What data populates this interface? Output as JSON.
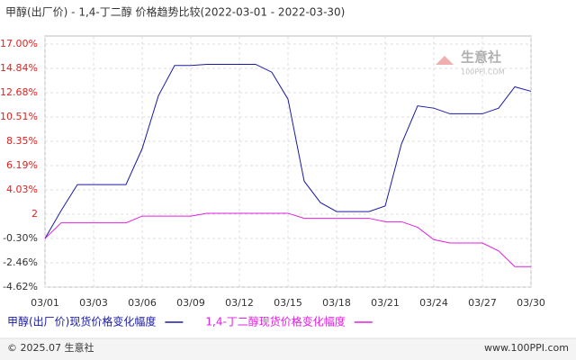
{
  "chart_data": {
    "type": "line",
    "title": "甲醇(出厂价) - 1,4-丁二醇 价格趋势比较(2022-03-01 - 2022-03-30)",
    "watermark": "生意社",
    "watermark_sub": "100PPI.COM",
    "categories": [
      "03/01",
      null,
      null,
      "03/03",
      null,
      null,
      "03/06",
      null,
      null,
      "03/09",
      null,
      null,
      "03/12",
      null,
      null,
      "03/15",
      null,
      null,
      "03/18",
      null,
      null,
      "03/21",
      null,
      null,
      "03/24",
      null,
      null,
      "03/27",
      null,
      null,
      "03/30"
    ],
    "series": [
      {
        "name": "甲醇(出厂价)现货价格变化幅度",
        "color": "#1a1aa6",
        "values": [
          -0.3,
          2.2,
          4.5,
          4.5,
          4.5,
          4.5,
          7.7,
          12.4,
          15.1,
          15.1,
          15.2,
          15.2,
          15.2,
          15.2,
          14.5,
          12.1,
          4.8,
          2.9,
          2.1,
          2.1,
          2.1,
          2.6,
          8.1,
          11.5,
          11.3,
          10.8,
          10.8,
          10.8,
          11.3,
          13.2,
          12.8
        ]
      },
      {
        "name": "1,4-丁二醇现货价格变化幅度",
        "color": "#e020e0",
        "values": [
          -0.3,
          1.1,
          1.1,
          1.1,
          1.1,
          1.1,
          1.7,
          1.7,
          1.7,
          1.7,
          1.95,
          1.95,
          1.95,
          1.95,
          1.95,
          1.95,
          1.5,
          1.5,
          1.5,
          1.5,
          1.5,
          1.2,
          1.2,
          0.7,
          -0.4,
          -0.7,
          -0.7,
          -0.7,
          -1.4,
          -2.8,
          -2.8
        ]
      }
    ],
    "ylim": [
      -4.62,
      17
    ],
    "yticks": [
      {
        "value": 17,
        "label": "17.00%"
      },
      {
        "value": 14.84,
        "label": "14.84%"
      },
      {
        "value": 12.68,
        "label": "12.68%"
      },
      {
        "value": 10.51,
        "label": "10.51%"
      },
      {
        "value": 8.35,
        "label": "8.35%"
      },
      {
        "value": 6.19,
        "label": "6.19%"
      },
      {
        "value": 4.03,
        "label": "4.03%"
      },
      {
        "value": 1.87,
        "label": "2"
      },
      {
        "value": -0.3,
        "label": "-0.30%"
      },
      {
        "value": -2.46,
        "label": "-2.46%"
      },
      {
        "value": -4.62,
        "label": "-4.62%"
      }
    ],
    "grid": true,
    "positive_tick_color": "#e02020",
    "negative_tick_color": "#333333",
    "footer_left": "© 2025.07 生意社",
    "footer_right": "www.100PPI.com"
  }
}
